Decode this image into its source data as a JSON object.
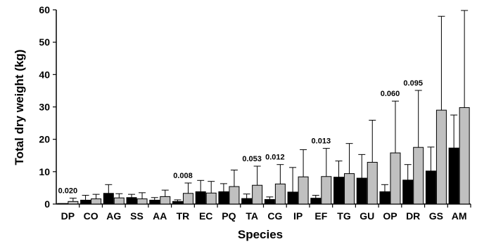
{
  "chart_data": {
    "type": "bar",
    "xlabel": "Species",
    "ylabel": "Total dry weight (kg)",
    "ylim": [
      0,
      60
    ],
    "yticks": [
      "0",
      "10",
      "20",
      "30",
      "40",
      "50",
      "60"
    ],
    "grid": false,
    "legend": "none",
    "categories": [
      "DP",
      "CO",
      "AG",
      "SS",
      "AA",
      "TR",
      "EC",
      "PQ",
      "TA",
      "CG",
      "IP",
      "EF",
      "TG",
      "GU",
      "OP",
      "DR",
      "GS",
      "AM"
    ],
    "series": [
      {
        "color": "#000000",
        "values": [
          0.1,
          1.2,
          3.3,
          2.0,
          1.2,
          0.8,
          3.8,
          3.8,
          1.7,
          1.4,
          3.7,
          1.8,
          8.3,
          8.0,
          3.8,
          7.4,
          10.2,
          17.3
        ],
        "error": [
          0,
          1.5,
          2.7,
          1.0,
          0.8,
          0.5,
          3.5,
          2.5,
          1.4,
          0.8,
          7.6,
          0.9,
          5.0,
          7.3,
          2.2,
          4.8,
          7.4,
          10.2
        ]
      },
      {
        "color": "#c0c0c0",
        "values": [
          0.8,
          1.6,
          1.9,
          1.6,
          2.3,
          3.3,
          3.4,
          5.4,
          5.8,
          6.2,
          8.4,
          8.5,
          9.4,
          12.9,
          15.8,
          17.5,
          29.0,
          29.8
        ],
        "error": [
          1.0,
          1.4,
          1.3,
          1.9,
          2.0,
          3.2,
          3.6,
          5.1,
          5.9,
          6.0,
          8.4,
          8.7,
          9.3,
          13.0,
          16.0,
          17.6,
          29.0,
          30.0
        ]
      }
    ],
    "annotations": [
      {
        "category": "DP",
        "text": "0.020"
      },
      {
        "category": "TR",
        "text": "0.008"
      },
      {
        "category": "TA",
        "text": "0.053"
      },
      {
        "category": "CG",
        "text": "0.012"
      },
      {
        "category": "EF",
        "text": "0.013"
      },
      {
        "category": "OP",
        "text": "0.060"
      },
      {
        "category": "DR",
        "text": "0.095"
      }
    ]
  }
}
